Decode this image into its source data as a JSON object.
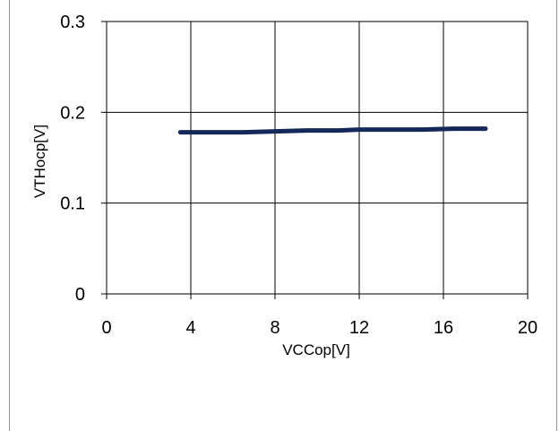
{
  "chart_data": {
    "type": "line",
    "title": "",
    "xlabel": "VCCop[V]",
    "ylabel": "VTHocp[V]",
    "xlim": [
      0,
      20
    ],
    "ylim": [
      0,
      0.3
    ],
    "x_ticks": [
      0,
      4,
      8,
      12,
      16,
      20
    ],
    "x_tick_labels": [
      "0",
      "4",
      "8",
      "12",
      "16",
      "20"
    ],
    "y_ticks": [
      0,
      0.1,
      0.2,
      0.3
    ],
    "y_tick_labels": [
      "0",
      "0.1",
      "0.2",
      "0.3"
    ],
    "grid": true,
    "legend": "none",
    "series": [
      {
        "color": "#14285a",
        "x": [
          3.5,
          5,
          6.5,
          8,
          9.5,
          11,
          12,
          13.5,
          15,
          16.5,
          18
        ],
        "y": [
          0.178,
          0.178,
          0.178,
          0.179,
          0.18,
          0.18,
          0.181,
          0.181,
          0.181,
          0.182,
          0.182
        ]
      }
    ]
  }
}
